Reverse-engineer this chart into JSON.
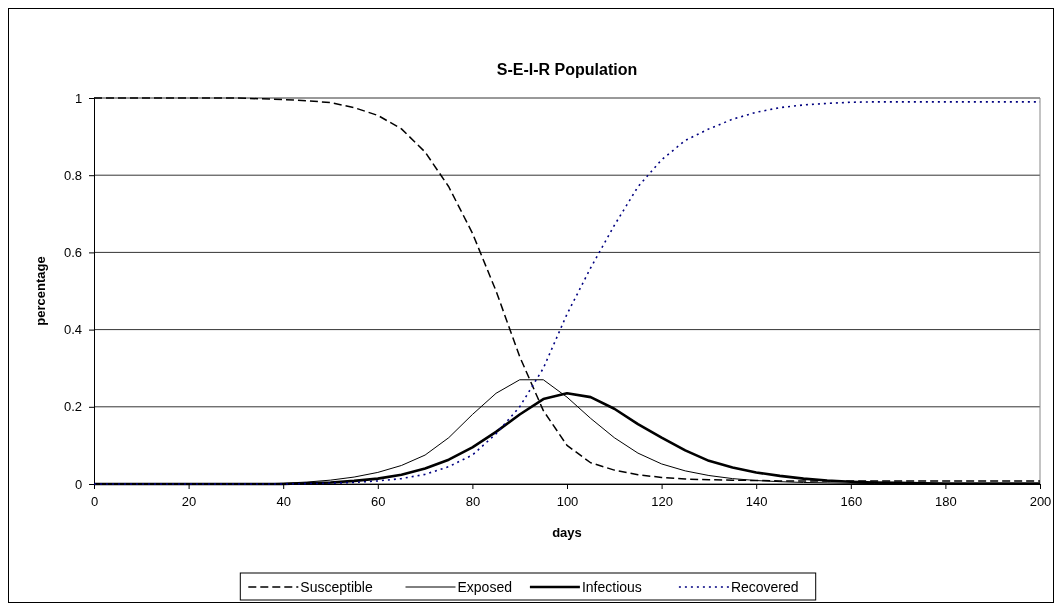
{
  "chart_data": {
    "type": "line",
    "title": "S-E-I-R Population",
    "xlabel": "days",
    "ylabel": "percentage",
    "x": [
      0,
      5,
      10,
      15,
      20,
      25,
      30,
      35,
      40,
      45,
      50,
      55,
      60,
      65,
      70,
      75,
      80,
      85,
      90,
      95,
      100,
      105,
      110,
      115,
      120,
      125,
      130,
      135,
      140,
      145,
      150,
      155,
      160,
      165,
      170,
      175,
      180,
      185,
      190,
      195,
      200
    ],
    "xlim": [
      0,
      200
    ],
    "xticks": [
      0,
      20,
      40,
      60,
      80,
      100,
      120,
      140,
      160,
      180,
      200
    ],
    "ylim": [
      0,
      1
    ],
    "yticks": [
      0,
      0.2,
      0.4,
      0.6,
      0.8,
      1
    ],
    "grid": "y",
    "legend": "bottom",
    "marker": "none",
    "series": [
      {
        "name": "Susceptible",
        "color": "#000000",
        "line_style": "dashed",
        "values": [
          1,
          1,
          1,
          1,
          1,
          1,
          1,
          0.998,
          0.996,
          0.993,
          0.988,
          0.975,
          0.955,
          0.92,
          0.86,
          0.77,
          0.65,
          0.5,
          0.33,
          0.19,
          0.1,
          0.055,
          0.036,
          0.024,
          0.017,
          0.013,
          0.011,
          0.01,
          0.009,
          0.008,
          0.008,
          0.008,
          0.008,
          0.008,
          0.008,
          0.008,
          0.008,
          0.008,
          0.008,
          0.008,
          0.008
        ]
      },
      {
        "name": "Exposed",
        "color": "#000000",
        "line_style": "solid",
        "values": [
          0,
          0,
          0,
          0,
          0,
          0,
          0,
          0,
          0.002,
          0.005,
          0.01,
          0.018,
          0.03,
          0.048,
          0.075,
          0.12,
          0.18,
          0.235,
          0.27,
          0.27,
          0.225,
          0.17,
          0.12,
          0.08,
          0.052,
          0.034,
          0.022,
          0.014,
          0.009,
          0.006,
          0.004,
          0.003,
          0.002,
          0.001,
          0.001,
          0.001,
          0.001,
          0.001,
          0.001,
          0.001,
          0.001
        ]
      },
      {
        "name": "Infectious",
        "color": "#000000",
        "line_style": "solid",
        "values": [
          0,
          0,
          0,
          0,
          0,
          0,
          0,
          0,
          0,
          0.002,
          0.004,
          0.008,
          0.014,
          0.024,
          0.04,
          0.063,
          0.095,
          0.135,
          0.18,
          0.22,
          0.235,
          0.225,
          0.195,
          0.155,
          0.12,
          0.087,
          0.06,
          0.043,
          0.03,
          0.021,
          0.014,
          0.009,
          0.006,
          0.004,
          0.003,
          0.002,
          0.001,
          0.001,
          0.001,
          0.001,
          0.001
        ]
      },
      {
        "name": "Recovered",
        "color": "#000080",
        "line_style": "dotted",
        "values": [
          0,
          0,
          0,
          0,
          0,
          0,
          0,
          0,
          0,
          0.001,
          0.002,
          0.004,
          0.008,
          0.014,
          0.025,
          0.045,
          0.075,
          0.13,
          0.2,
          0.3,
          0.44,
          0.56,
          0.67,
          0.77,
          0.84,
          0.89,
          0.92,
          0.945,
          0.963,
          0.975,
          0.982,
          0.986,
          0.989,
          0.99,
          0.99,
          0.99,
          0.99,
          0.99,
          0.99,
          0.99,
          0.99
        ]
      }
    ]
  }
}
